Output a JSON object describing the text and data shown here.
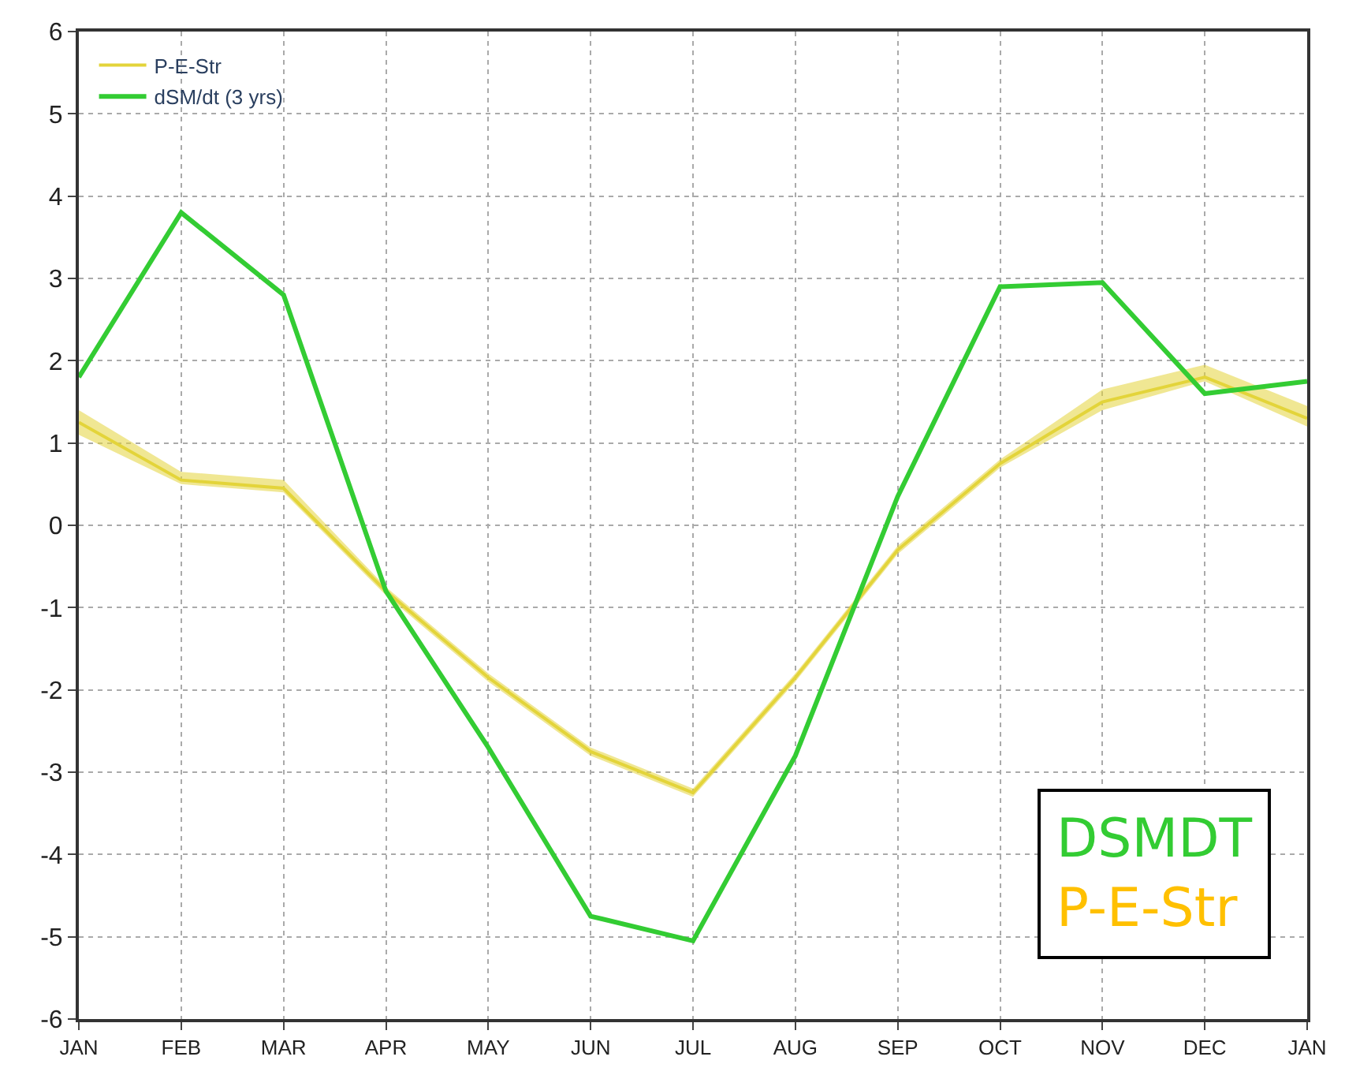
{
  "chart_data": {
    "type": "line",
    "categories": [
      "JAN",
      "FEB",
      "MAR",
      "APR",
      "MAY",
      "JUN",
      "JUL",
      "AUG",
      "SEP",
      "OCT",
      "NOV",
      "DEC",
      "JAN"
    ],
    "series": [
      {
        "name": "P-E-Str",
        "color": "#e3d43a",
        "values": [
          1.25,
          0.55,
          0.45,
          -0.8,
          -1.85,
          -2.75,
          -3.25,
          -1.85,
          -0.3,
          0.75,
          1.5,
          1.8,
          1.3
        ],
        "lower": [
          1.1,
          0.5,
          0.4,
          -0.85,
          -1.9,
          -2.8,
          -3.3,
          -1.9,
          -0.35,
          0.7,
          1.4,
          1.75,
          1.2
        ],
        "upper": [
          1.4,
          0.65,
          0.55,
          -0.75,
          -1.8,
          -2.7,
          -3.2,
          -1.8,
          -0.25,
          0.8,
          1.65,
          1.95,
          1.45
        ]
      },
      {
        "name": "dSM/dt (3 yrs)",
        "color": "#33cc33",
        "values": [
          1.8,
          3.8,
          2.8,
          -0.8,
          -2.7,
          -4.75,
          -5.05,
          -2.8,
          0.35,
          2.9,
          2.95,
          1.6,
          1.75
        ]
      }
    ],
    "ylim": [
      -6,
      6
    ],
    "yticks": [
      -6,
      -5,
      -4,
      -3,
      -2,
      -1,
      0,
      1,
      2,
      3,
      4,
      5,
      6
    ],
    "grid": true,
    "legend": "top left",
    "annotations": [
      "DSMDT",
      "P-E-Str"
    ]
  }
}
